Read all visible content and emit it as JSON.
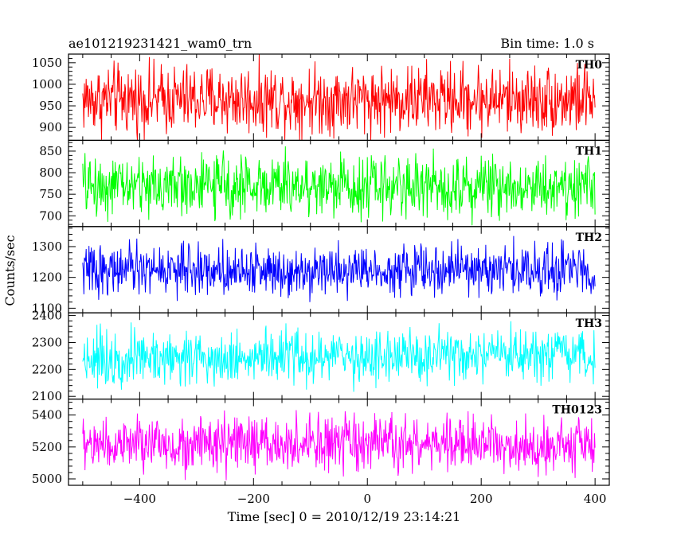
{
  "chart_data": {
    "type": "line",
    "title": "ae101219231421_wam0_trn",
    "subtitle": "Bin time: 1.0 s",
    "xlabel": "Time [sec] 0 = 2010/12/19 23:14:21",
    "ylabel": "Counts/sec",
    "xlim": [
      -525,
      425
    ],
    "x_ticks": [
      -400,
      -200,
      0,
      200,
      400
    ],
    "x_data_range": [
      -500,
      400
    ],
    "bin_time_s": 1.0,
    "grid": false,
    "panels": [
      {
        "name": "TH0",
        "color": "#ff0000",
        "ylim": [
          870,
          1070
        ],
        "y_ticks": [
          900,
          950,
          1000,
          1050
        ],
        "mean": 965,
        "amplitude": 40,
        "clip": [
          870,
          1070
        ]
      },
      {
        "name": "TH1",
        "color": "#00ff00",
        "ylim": [
          675,
          875
        ],
        "y_ticks": [
          700,
          750,
          800,
          850
        ],
        "mean": 770,
        "amplitude": 35,
        "clip": [
          675,
          875
        ]
      },
      {
        "name": "TH2",
        "color": "#0000ff",
        "ylim": [
          1085,
          1365
        ],
        "y_ticks": [
          1100,
          1200,
          1300
        ],
        "mean": 1225,
        "amplitude": 40,
        "clip": [
          1085,
          1365
        ]
      },
      {
        "name": "TH3",
        "color": "#00ffff",
        "ylim": [
          2090,
          2410
        ],
        "y_ticks": [
          2100,
          2200,
          2300,
          2400
        ],
        "mean": 2245,
        "amplitude": 50,
        "clip": [
          2090,
          2410
        ]
      },
      {
        "name": "TH0123",
        "color": "#ff00ff",
        "ylim": [
          4960,
          5500
        ],
        "y_ticks": [
          5000,
          5200,
          5400
        ],
        "mean": 5215,
        "amplitude": 85,
        "clip": [
          4960,
          5500
        ]
      }
    ]
  }
}
